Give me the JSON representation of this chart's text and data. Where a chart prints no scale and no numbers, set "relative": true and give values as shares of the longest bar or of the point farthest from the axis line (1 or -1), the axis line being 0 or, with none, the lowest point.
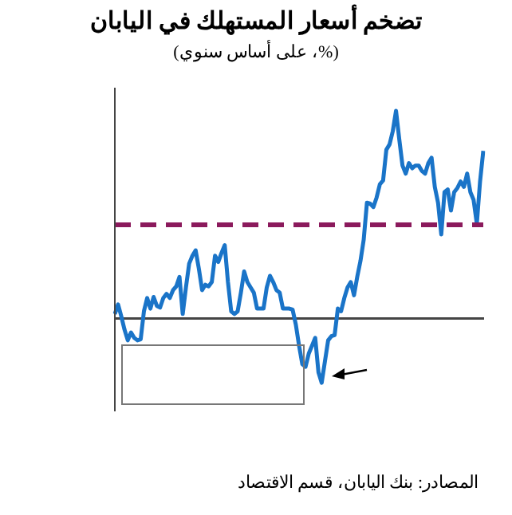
{
  "chart_data": {
    "type": "line",
    "title": "تضخم أسعار المستهلك في اليابان",
    "subtitle": "(%، على أساس سنوي)",
    "relative": true,
    "legend": false,
    "grid": false,
    "marker": "none",
    "line_style": "solid",
    "categories": [
      null,
      null,
      null,
      null,
      null,
      null,
      null,
      null,
      null,
      null,
      null,
      null,
      null,
      null,
      null,
      null,
      null,
      null,
      null,
      null,
      null,
      null,
      null,
      null,
      null,
      null,
      null,
      null,
      null,
      null,
      null,
      null,
      null,
      null,
      null,
      null,
      null,
      null,
      null,
      null,
      null,
      null,
      null,
      null,
      null,
      null,
      null,
      null,
      null,
      null,
      null,
      null,
      null,
      null,
      null,
      null,
      null,
      null,
      null,
      null,
      null,
      null,
      null,
      null,
      null,
      null,
      null,
      null,
      null,
      null,
      null,
      null,
      null,
      null,
      null,
      null,
      null,
      null,
      null,
      null,
      null,
      null,
      null,
      null,
      null,
      null,
      null,
      null,
      null,
      null,
      null,
      null,
      null,
      null,
      null,
      null,
      null,
      null,
      null,
      null,
      null,
      null,
      null,
      null,
      null,
      null,
      null,
      null,
      null,
      null,
      null,
      null,
      null,
      null,
      null
    ],
    "series": [
      {
        "color": "#1a74c8",
        "values": [
          0.02,
          0.066,
          0.008,
          -0.056,
          -0.107,
          -0.069,
          -0.095,
          -0.107,
          -0.102,
          0.033,
          0.097,
          0.046,
          0.102,
          0.059,
          0.051,
          0.097,
          0.117,
          0.097,
          0.135,
          0.153,
          0.199,
          0.02,
          0.148,
          0.263,
          0.301,
          0.327,
          0.238,
          0.135,
          0.161,
          0.153,
          0.174,
          0.301,
          0.271,
          0.314,
          0.352,
          0.174,
          0.033,
          0.02,
          0.033,
          0.123,
          0.225,
          0.174,
          0.148,
          0.123,
          0.046,
          0.046,
          0.046,
          0.148,
          0.204,
          0.174,
          0.135,
          0.123,
          0.046,
          0.046,
          0.046,
          0.041,
          -0.031,
          -0.133,
          -0.222,
          -0.235,
          -0.171,
          -0.133,
          -0.095,
          -0.261,
          -0.312,
          -0.209,
          -0.107,
          -0.087,
          -0.082,
          0.046,
          0.033,
          0.097,
          0.148,
          0.174,
          0.11,
          0.199,
          0.276,
          0.378,
          0.557,
          0.552,
          0.536,
          0.582,
          0.646,
          0.664,
          0.812,
          0.838,
          0.902,
          1,
          0.863,
          0.736,
          0.697,
          0.748,
          0.723,
          0.736,
          0.736,
          0.71,
          0.697,
          0.748,
          0.774,
          0.633,
          0.557,
          0.404,
          0.608,
          0.621,
          0.519,
          0.608,
          0.628,
          0.659,
          0.633,
          0.697,
          0.608,
          0.57,
          0.455,
          0.659,
          0.807
        ]
      }
    ],
    "ref_lines": [
      {
        "axis": "y",
        "value": 0.45,
        "color": "#8b1a5c",
        "line_style": "dashed"
      }
    ],
    "annotations": [
      "المصادر: بنك اليابان، قسم الاقتصاد"
    ]
  }
}
